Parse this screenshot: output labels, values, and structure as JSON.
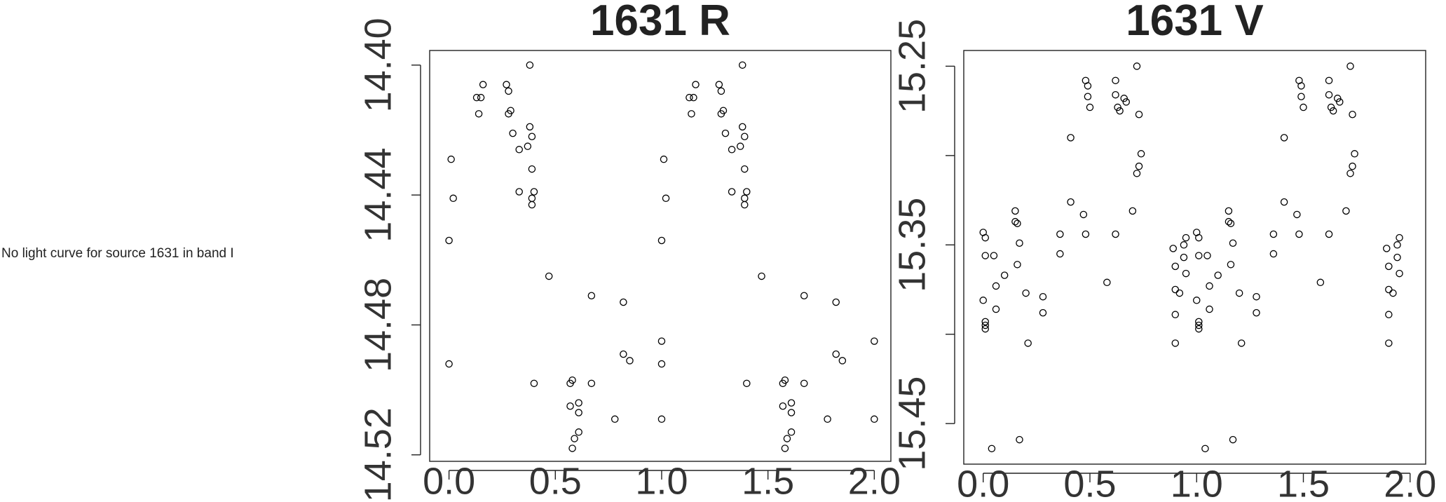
{
  "message": "No light curve for source 1631 in band I",
  "chart_data": [
    {
      "type": "scatter",
      "title": "1631 R",
      "x": [
        0.0,
        0.01,
        0.02,
        0.0,
        0.13,
        0.15,
        0.14,
        0.16,
        0.27,
        0.28,
        0.29,
        0.28,
        0.3,
        0.33,
        0.33,
        0.37,
        0.38,
        0.38,
        0.39,
        0.39,
        0.4,
        0.39,
        0.39,
        0.4,
        0.47,
        0.57,
        0.58,
        0.57,
        0.61,
        0.61,
        0.59,
        0.61,
        0.58,
        0.67,
        0.67,
        0.78,
        0.82,
        0.82,
        0.85,
        1.0,
        1.0,
        1.0,
        1.01,
        1.02,
        1.0,
        1.13,
        1.15,
        1.14,
        1.16,
        1.27,
        1.28,
        1.29,
        1.28,
        1.3,
        1.33,
        1.33,
        1.37,
        1.38,
        1.38,
        1.39,
        1.39,
        1.4,
        1.39,
        1.39,
        1.4,
        1.47,
        1.57,
        1.58,
        1.57,
        1.61,
        1.61,
        1.59,
        1.61,
        1.58,
        1.67,
        1.67,
        1.78,
        1.82,
        1.82,
        1.85,
        2.0,
        2.0
      ],
      "values": [
        14.454,
        14.429,
        14.441,
        14.492,
        14.41,
        14.41,
        14.415,
        14.406,
        14.406,
        14.408,
        14.414,
        14.415,
        14.421,
        14.426,
        14.439,
        14.425,
        14.4,
        14.419,
        14.422,
        14.432,
        14.439,
        14.441,
        14.443,
        14.498,
        14.465,
        14.498,
        14.497,
        14.505,
        14.504,
        14.507,
        14.515,
        14.513,
        14.518,
        14.471,
        14.498,
        14.509,
        14.473,
        14.489,
        14.491,
        14.485,
        14.509,
        14.454,
        14.429,
        14.441,
        14.492,
        14.41,
        14.41,
        14.415,
        14.406,
        14.406,
        14.408,
        14.414,
        14.415,
        14.421,
        14.426,
        14.439,
        14.425,
        14.4,
        14.419,
        14.422,
        14.432,
        14.439,
        14.441,
        14.443,
        14.498,
        14.465,
        14.498,
        14.497,
        14.505,
        14.504,
        14.507,
        14.515,
        14.513,
        14.518,
        14.471,
        14.498,
        14.509,
        14.473,
        14.489,
        14.491,
        14.485,
        14.509
      ],
      "color": "#000000",
      "xlim": [
        -0.091,
        2.078
      ],
      "ylim": [
        14.3955,
        14.522
      ],
      "invert_y": true,
      "xticks": [
        {
          "value": 0,
          "label": "0.0"
        },
        {
          "value": 0.5,
          "label": "0.5"
        },
        {
          "value": 1,
          "label": "1.0"
        },
        {
          "value": 1.5,
          "label": "1.5"
        },
        {
          "value": 2,
          "label": "2.0"
        }
      ],
      "yticks": [
        {
          "value": 14.4,
          "label": "14.40"
        },
        {
          "value": 14.44,
          "label": "14.44"
        },
        {
          "value": 14.48,
          "label": "14.48"
        },
        {
          "value": 14.52,
          "label": "14.52"
        }
      ]
    },
    {
      "type": "scatter",
      "title": "1631 V",
      "x": [
        0.0,
        0.01,
        0.01,
        0.05,
        0.0,
        0.01,
        0.01,
        0.01,
        0.04,
        0.06,
        0.06,
        0.1,
        0.15,
        0.15,
        0.16,
        0.17,
        0.16,
        0.17,
        0.2,
        0.21,
        0.28,
        0.28,
        0.36,
        0.36,
        0.41,
        0.41,
        0.47,
        0.48,
        0.48,
        0.49,
        0.49,
        0.5,
        0.58,
        0.62,
        0.62,
        0.63,
        0.64,
        0.66,
        0.67,
        0.7,
        0.72,
        0.73,
        0.74,
        0.72,
        0.73,
        0.62,
        0.89,
        0.9,
        0.9,
        0.9,
        0.9,
        0.92,
        0.94,
        0.94,
        0.95,
        0.95,
        1.0,
        1.01,
        1.01,
        1.05,
        1.0,
        1.01,
        1.01,
        1.01,
        1.04,
        1.06,
        1.06,
        1.1,
        1.15,
        1.15,
        1.16,
        1.17,
        1.16,
        1.17,
        1.2,
        1.21,
        1.28,
        1.28,
        1.36,
        1.36,
        1.41,
        1.41,
        1.47,
        1.48,
        1.48,
        1.49,
        1.49,
        1.5,
        1.58,
        1.62,
        1.62,
        1.63,
        1.64,
        1.66,
        1.67,
        1.7,
        1.72,
        1.73,
        1.74,
        1.72,
        1.73,
        1.62,
        1.89,
        1.9,
        1.9,
        1.9,
        1.9,
        1.92,
        1.94,
        1.94,
        1.95,
        1.95
      ],
      "values": [
        15.343,
        15.346,
        15.356,
        15.356,
        15.381,
        15.393,
        15.395,
        15.397,
        15.464,
        15.373,
        15.386,
        15.367,
        15.331,
        15.337,
        15.338,
        15.349,
        15.361,
        15.459,
        15.377,
        15.405,
        15.379,
        15.388,
        15.344,
        15.355,
        15.29,
        15.326,
        15.333,
        15.344,
        15.258,
        15.261,
        15.267,
        15.273,
        15.371,
        15.258,
        15.266,
        15.273,
        15.275,
        15.268,
        15.27,
        15.331,
        15.31,
        15.306,
        15.299,
        15.25,
        15.277,
        15.344,
        15.352,
        15.362,
        15.375,
        15.389,
        15.405,
        15.377,
        15.35,
        15.357,
        15.346,
        15.366,
        15.343,
        15.346,
        15.356,
        15.356,
        15.381,
        15.393,
        15.395,
        15.397,
        15.464,
        15.373,
        15.386,
        15.367,
        15.331,
        15.337,
        15.338,
        15.349,
        15.361,
        15.459,
        15.377,
        15.405,
        15.379,
        15.388,
        15.344,
        15.355,
        15.29,
        15.326,
        15.333,
        15.344,
        15.258,
        15.261,
        15.267,
        15.273,
        15.371,
        15.258,
        15.266,
        15.273,
        15.275,
        15.268,
        15.27,
        15.331,
        15.31,
        15.306,
        15.299,
        15.25,
        15.277,
        15.344,
        15.352,
        15.362,
        15.375,
        15.389,
        15.405,
        15.377,
        15.35,
        15.357,
        15.346,
        15.366
      ],
      "color": "#000000",
      "xlim": [
        -0.091,
        2.073
      ],
      "ylim": [
        15.2412,
        15.4727
      ],
      "invert_y": true,
      "xticks": [
        {
          "value": 0,
          "label": "0.0"
        },
        {
          "value": 0.5,
          "label": "0.5"
        },
        {
          "value": 1,
          "label": "1.0"
        },
        {
          "value": 1.5,
          "label": "1.5"
        },
        {
          "value": 2,
          "label": "2.0"
        }
      ],
      "yticks": [
        {
          "value": 15.25,
          "label": "15.25"
        },
        {
          "value": 15.3,
          "label": null
        },
        {
          "value": 15.35,
          "label": "15.35"
        },
        {
          "value": 15.4,
          "label": null
        },
        {
          "value": 15.45,
          "label": "15.45"
        }
      ]
    }
  ]
}
